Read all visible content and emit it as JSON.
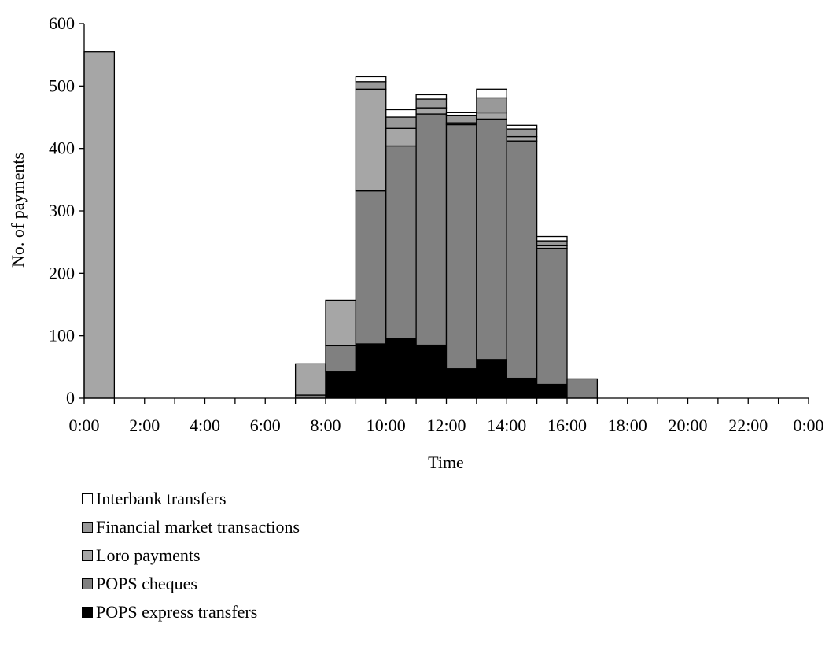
{
  "chart_data": {
    "type": "bar",
    "stacked": true,
    "ylabel": "No. of payments",
    "xlabel": "Time",
    "ylim": [
      0,
      600
    ],
    "yticks": [
      0,
      100,
      200,
      300,
      400,
      500,
      600
    ],
    "xlim": [
      0,
      24
    ],
    "xtick_labels": [
      "0:00",
      "2:00",
      "4:00",
      "6:00",
      "8:00",
      "10:00",
      "12:00",
      "14:00",
      "16:00",
      "18:00",
      "20:00",
      "22:00",
      "0:00"
    ],
    "categories": [
      "0:00",
      "1:00",
      "2:00",
      "3:00",
      "4:00",
      "5:00",
      "6:00",
      "7:00",
      "8:00",
      "9:00",
      "10:00",
      "11:00",
      "12:00",
      "13:00",
      "14:00",
      "15:00",
      "16:00",
      "17:00",
      "18:00",
      "19:00",
      "20:00",
      "21:00",
      "22:00",
      "23:00"
    ],
    "legend_position": "bottom",
    "series": [
      {
        "name": "POPS express transfers",
        "color": "#000000",
        "values": [
          0,
          0,
          0,
          0,
          0,
          0,
          0,
          0,
          42,
          87,
          95,
          85,
          47,
          62,
          32,
          22,
          0,
          0,
          0,
          0,
          0,
          0,
          0,
          0
        ]
      },
      {
        "name": "POPS cheques",
        "color": "#808080",
        "values": [
          0,
          0,
          0,
          0,
          0,
          0,
          0,
          5,
          42,
          245,
          309,
          370,
          391,
          385,
          380,
          218,
          31,
          0,
          0,
          0,
          0,
          0,
          0,
          0
        ]
      },
      {
        "name": "Loro payments",
        "color": "#a6a6a6",
        "values": [
          555,
          0,
          0,
          0,
          0,
          0,
          0,
          50,
          73,
          163,
          28,
          10,
          3,
          10,
          7,
          5,
          0,
          0,
          0,
          0,
          0,
          0,
          0,
          0
        ]
      },
      {
        "name": "Financial market transactions",
        "color": "#999999",
        "values": [
          0,
          0,
          0,
          0,
          0,
          0,
          0,
          0,
          0,
          12,
          18,
          14,
          12,
          24,
          12,
          7,
          0,
          0,
          0,
          0,
          0,
          0,
          0,
          0
        ]
      },
      {
        "name": "Interbank transfers",
        "color": "#ffffff",
        "values": [
          0,
          0,
          0,
          0,
          0,
          0,
          0,
          0,
          0,
          8,
          12,
          7,
          5,
          14,
          6,
          7,
          0,
          0,
          0,
          0,
          0,
          0,
          0,
          0
        ]
      }
    ]
  }
}
